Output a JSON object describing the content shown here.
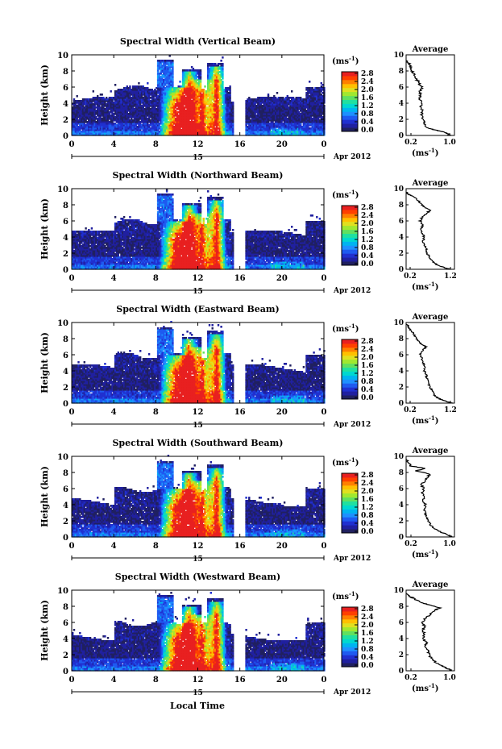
{
  "page": {
    "xlabel_global": "Local Time"
  },
  "colorbar": {
    "unit_label": "(ms",
    "unit_exp": "-1",
    "unit_close": ")",
    "ticks": [
      "0.0",
      "0.4",
      "0.8",
      "1.2",
      "1.6",
      "2.0",
      "2.4",
      "2.8"
    ],
    "colors": [
      "#202060",
      "#2020a0",
      "#2030d0",
      "#1e5af0",
      "#1e90ff",
      "#00b4f0",
      "#00d8d0",
      "#20e0a0",
      "#60e060",
      "#a0e830",
      "#e0e020",
      "#ffc000",
      "#ff8000",
      "#ff4000",
      "#e82020"
    ]
  },
  "chart_data": [
    {
      "type": "heatmap",
      "title": "Spectral Width (Vertical Beam)",
      "ylabel": "Height (km)",
      "ylim": [
        0,
        10
      ],
      "yticks": [
        "0",
        "2",
        "4",
        "6",
        "8",
        "10"
      ],
      "xlim": [
        0,
        24
      ],
      "xticks": [
        "0",
        "4",
        "8",
        "12",
        "16",
        "20",
        "0"
      ],
      "date_day": "15",
      "date_label": "Apr 2012",
      "cbar_ticks": [
        "0.0",
        "0.4",
        "0.8",
        "1.2",
        "1.6",
        "2.0",
        "2.4",
        "2.8"
      ],
      "avg_title": "Average",
      "avg_xlabel": "(ms",
      "avg_xticks": [
        "0.2",
        "1.0"
      ],
      "avg_xlim": [
        0.1,
        1.1
      ],
      "avg_profile": [
        [
          1.0,
          0.0
        ],
        [
          0.95,
          0.3
        ],
        [
          0.75,
          0.6
        ],
        [
          0.62,
          0.8
        ],
        [
          0.5,
          1.0
        ],
        [
          0.48,
          1.5
        ],
        [
          0.46,
          2.0
        ],
        [
          0.42,
          2.5
        ],
        [
          0.44,
          3.0
        ],
        [
          0.4,
          3.5
        ],
        [
          0.42,
          4.0
        ],
        [
          0.38,
          4.5
        ],
        [
          0.4,
          5.0
        ],
        [
          0.38,
          5.5
        ],
        [
          0.44,
          6.0
        ],
        [
          0.38,
          6.3
        ],
        [
          0.35,
          6.7
        ],
        [
          0.3,
          7.0
        ],
        [
          0.28,
          7.5
        ],
        [
          0.22,
          8.0
        ],
        [
          0.2,
          8.5
        ],
        [
          0.15,
          9.0
        ],
        [
          0.12,
          9.3
        ]
      ]
    },
    {
      "type": "heatmap",
      "title": "Spectral Width (Northward Beam)",
      "ylabel": "Height (km)",
      "ylim": [
        0,
        10
      ],
      "yticks": [
        "0",
        "2",
        "4",
        "6",
        "8",
        "10"
      ],
      "xlim": [
        0,
        24
      ],
      "xticks": [
        "0",
        "4",
        "8",
        "12",
        "16",
        "20",
        "0"
      ],
      "date_day": "15",
      "date_label": "Apr 2012",
      "cbar_ticks": [
        "0.0",
        "0.4",
        "0.8",
        "1.2",
        "1.6",
        "2.0",
        "2.4",
        "2.8"
      ],
      "avg_title": "Average",
      "avg_xlabel": "(ms",
      "avg_xticks": [
        "0.2",
        "1.2"
      ],
      "avg_xlim": [
        0.1,
        1.3
      ],
      "avg_profile": [
        [
          1.2,
          0.0
        ],
        [
          1.0,
          0.3
        ],
        [
          0.85,
          0.6
        ],
        [
          0.75,
          1.0
        ],
        [
          0.68,
          1.5
        ],
        [
          0.62,
          2.0
        ],
        [
          0.6,
          2.5
        ],
        [
          0.55,
          3.0
        ],
        [
          0.52,
          3.5
        ],
        [
          0.55,
          4.0
        ],
        [
          0.5,
          4.5
        ],
        [
          0.48,
          5.0
        ],
        [
          0.52,
          5.5
        ],
        [
          0.45,
          6.0
        ],
        [
          0.5,
          6.5
        ],
        [
          0.62,
          7.0
        ],
        [
          0.7,
          7.3
        ],
        [
          0.55,
          7.7
        ],
        [
          0.5,
          8.0
        ],
        [
          0.4,
          8.5
        ],
        [
          0.3,
          9.0
        ],
        [
          0.15,
          9.3
        ],
        [
          0.12,
          9.6
        ]
      ]
    },
    {
      "type": "heatmap",
      "title": "Spectral Width (Eastward Beam)",
      "ylabel": "Height (km)",
      "ylim": [
        0,
        10
      ],
      "yticks": [
        "0",
        "2",
        "4",
        "6",
        "8",
        "10"
      ],
      "xlim": [
        0,
        24
      ],
      "xticks": [
        "0",
        "4",
        "8",
        "12",
        "16",
        "20",
        "0"
      ],
      "date_day": "15",
      "date_label": "Apr 2012",
      "cbar_ticks": [
        "0.0",
        "0.4",
        "0.8",
        "1.2",
        "1.6",
        "2.0",
        "2.4",
        "2.8"
      ],
      "avg_title": "Average",
      "avg_xlabel": "(ms",
      "avg_xticks": [
        "0.2",
        "1.2"
      ],
      "avg_xlim": [
        0.1,
        1.3
      ],
      "avg_profile": [
        [
          1.25,
          0.0
        ],
        [
          1.05,
          0.3
        ],
        [
          0.9,
          0.6
        ],
        [
          0.8,
          1.0
        ],
        [
          0.75,
          1.5
        ],
        [
          0.7,
          2.0
        ],
        [
          0.65,
          2.5
        ],
        [
          0.62,
          3.0
        ],
        [
          0.6,
          3.5
        ],
        [
          0.55,
          4.0
        ],
        [
          0.58,
          4.5
        ],
        [
          0.52,
          5.0
        ],
        [
          0.5,
          5.5
        ],
        [
          0.45,
          6.0
        ],
        [
          0.5,
          6.5
        ],
        [
          0.6,
          7.0
        ],
        [
          0.48,
          7.3
        ],
        [
          0.4,
          7.7
        ],
        [
          0.35,
          8.0
        ],
        [
          0.3,
          8.5
        ],
        [
          0.22,
          9.0
        ],
        [
          0.15,
          9.5
        ],
        [
          0.12,
          9.8
        ]
      ]
    },
    {
      "type": "heatmap",
      "title": "Spectral Width (Southward Beam)",
      "ylabel": "Height (km)",
      "ylim": [
        0,
        10
      ],
      "yticks": [
        "0",
        "2",
        "4",
        "6",
        "8",
        "10"
      ],
      "xlim": [
        0,
        24
      ],
      "xticks": [
        "0",
        "4",
        "8",
        "12",
        "16",
        "20",
        "0"
      ],
      "date_day": "15",
      "date_label": "Apr 2012",
      "cbar_ticks": [
        "0.0",
        "0.4",
        "0.8",
        "1.2",
        "1.6",
        "2.0",
        "2.4",
        "2.8"
      ],
      "avg_title": "Average",
      "avg_xlabel": "(ms",
      "avg_xticks": [
        "0.2",
        "1.0"
      ],
      "avg_xlim": [
        0.1,
        1.1
      ],
      "avg_profile": [
        [
          1.05,
          0.0
        ],
        [
          0.95,
          0.3
        ],
        [
          0.82,
          0.6
        ],
        [
          0.7,
          1.0
        ],
        [
          0.6,
          1.5
        ],
        [
          0.55,
          2.0
        ],
        [
          0.52,
          2.5
        ],
        [
          0.5,
          3.0
        ],
        [
          0.48,
          3.5
        ],
        [
          0.5,
          4.0
        ],
        [
          0.45,
          4.5
        ],
        [
          0.48,
          5.0
        ],
        [
          0.44,
          5.5
        ],
        [
          0.46,
          6.0
        ],
        [
          0.42,
          6.5
        ],
        [
          0.5,
          7.0
        ],
        [
          0.55,
          7.5
        ],
        [
          0.6,
          7.8
        ],
        [
          0.3,
          8.2
        ],
        [
          0.5,
          8.5
        ],
        [
          0.2,
          8.8
        ],
        [
          0.15,
          9.2
        ],
        [
          0.12,
          9.6
        ]
      ]
    },
    {
      "type": "heatmap",
      "title": "Spectral Width (Westward Beam)",
      "ylabel": "Height (km)",
      "ylim": [
        0,
        10
      ],
      "yticks": [
        "0",
        "2",
        "4",
        "6",
        "8",
        "10"
      ],
      "xlim": [
        0,
        24
      ],
      "xticks": [
        "0",
        "4",
        "8",
        "12",
        "16",
        "20",
        "0"
      ],
      "date_day": "15",
      "date_label": "Apr 2012",
      "cbar_ticks": [
        "0.0",
        "0.4",
        "0.8",
        "1.2",
        "1.6",
        "2.0",
        "2.4",
        "2.8"
      ],
      "avg_title": "Average",
      "avg_xlabel": "(ms",
      "avg_xticks": [
        "0.2",
        "1.0"
      ],
      "avg_xlim": [
        0.1,
        1.1
      ],
      "avg_profile": [
        [
          1.05,
          0.0
        ],
        [
          0.95,
          0.3
        ],
        [
          0.85,
          0.6
        ],
        [
          0.72,
          1.0
        ],
        [
          0.62,
          1.5
        ],
        [
          0.58,
          2.0
        ],
        [
          0.55,
          2.5
        ],
        [
          0.5,
          3.0
        ],
        [
          0.52,
          3.5
        ],
        [
          0.46,
          4.0
        ],
        [
          0.48,
          4.5
        ],
        [
          0.45,
          5.0
        ],
        [
          0.48,
          5.5
        ],
        [
          0.44,
          6.0
        ],
        [
          0.5,
          6.5
        ],
        [
          0.6,
          7.0
        ],
        [
          0.7,
          7.5
        ],
        [
          0.8,
          7.8
        ],
        [
          0.55,
          8.2
        ],
        [
          0.4,
          8.5
        ],
        [
          0.25,
          9.0
        ],
        [
          0.15,
          9.3
        ],
        [
          0.12,
          9.6
        ]
      ]
    }
  ]
}
